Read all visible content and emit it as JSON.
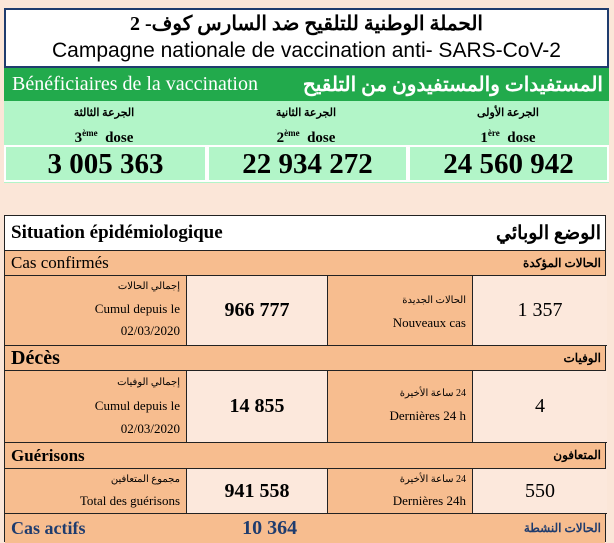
{
  "campaign": {
    "title_ar": "الحملة الوطنية للتلقيح ضد السارس كوف- 2",
    "title_fr": "Campagne nationale de vaccination anti- SARS-CoV-2"
  },
  "beneficiaries": {
    "label_fr": "Bénéficiaires de la vaccination",
    "label_ar": "المستفيدات والمستفيدون من التلقيح",
    "doses": [
      {
        "ar": "الجرعة الثالثة",
        "num": "3",
        "sup": "ème",
        "word": "dose",
        "value": "3 005 363"
      },
      {
        "ar": "الجرعة الثانية",
        "num": "2",
        "sup": "ème",
        "word": "dose",
        "value": "22 934 272"
      },
      {
        "ar": "الجرعة الأولى",
        "num": "1",
        "sup": "ère",
        "word": "dose",
        "value": "24 560 942"
      }
    ]
  },
  "epi": {
    "title_fr": "Situation épidémiologique",
    "title_ar": "الوضع الوبائي",
    "confirmed": {
      "fr": "Cas confirmés",
      "ar": "الحالات المؤكدة",
      "total_ar": "إجمالي الحالات",
      "total_fr": "Cumul depuis le",
      "date": "02/03/2020",
      "total": "966 777",
      "new_ar": "الحالات الجديدة",
      "new_fr": "Nouveaux cas",
      "new": "1 357"
    },
    "deaths": {
      "fr": "Décès",
      "ar": "الوفيات",
      "total_ar": "إجمالي الوفيات",
      "total_fr": "Cumul depuis le",
      "date": "02/03/2020",
      "total": "14 855",
      "new_ar": "24 ساعة الأخيرة",
      "new_fr": "Dernières 24 h",
      "new": "4"
    },
    "recovered": {
      "fr": "Guérisons",
      "ar": "المتعافون",
      "total_ar": "مجموع المتعافين",
      "total_fr": "Total des guérisons",
      "total": "941 558",
      "new_ar": "24 ساعة الأخيرة",
      "new_fr": "Dernières 24h",
      "new": "550"
    },
    "active": {
      "fr": "Cas actifs",
      "ar": "الحالات النشطة",
      "value": "10 364"
    }
  },
  "colors": {
    "green": "#22aa4c",
    "light_green": "#b2f5c8",
    "orange": "#f7bd8f",
    "navy": "#1f3c6e"
  }
}
